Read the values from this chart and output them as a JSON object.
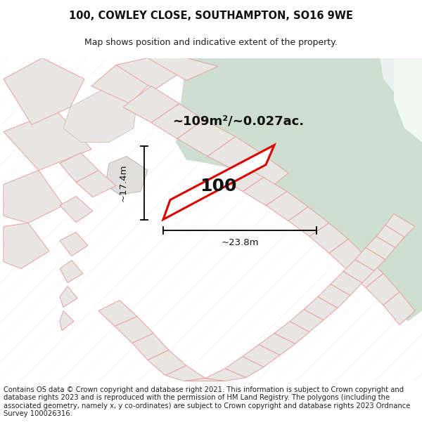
{
  "title_line1": "100, COWLEY CLOSE, SOUTHAMPTON, SO16 9WE",
  "title_line2": "Map shows position and indicative extent of the property.",
  "area_text": "~109m²/~0.027ac.",
  "dim_width": "~23.8m",
  "dim_height": "~17.4m",
  "property_number": "100",
  "footer_text": "Contains OS data © Crown copyright and database right 2021. This information is subject to Crown copyright and database rights 2023 and is reproduced with the permission of HM Land Registry. The polygons (including the associated geometry, namely x, y co-ordinates) are subject to Crown copyright and database rights 2023 Ordnance Survey 100026316.",
  "map_bg": "#f5f4f2",
  "property_fill": "#ffffff",
  "property_outline": "#dd0000",
  "other_fill": "#e8e6e3",
  "other_outline": "#e8a0a0",
  "green_fill": "#cdddd0",
  "white_bg": "#ffffff",
  "road_fill": "#e0dedd",
  "title_fontsize": 10.5,
  "subtitle_fontsize": 9,
  "footer_fontsize": 7.2,
  "number_fontsize": 18,
  "area_fontsize": 13,
  "dim_fontsize": 9.5
}
